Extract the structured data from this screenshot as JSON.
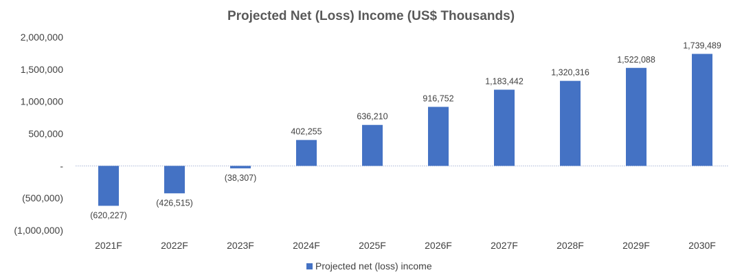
{
  "chart_data": {
    "type": "bar",
    "title": "Projected Net (Loss) Income (US$ Thousands)",
    "categories": [
      "2021F",
      "2022F",
      "2023F",
      "2024F",
      "2025F",
      "2026F",
      "2027F",
      "2028F",
      "2029F",
      "2030F"
    ],
    "series": [
      {
        "name": "Projected net (loss) income",
        "values": [
          -620227,
          -426515,
          -38307,
          402255,
          636210,
          916752,
          1183442,
          1320316,
          1522088,
          1739489
        ],
        "data_labels": [
          "(620,227)",
          "(426,515)",
          "(38,307)",
          "402,255",
          "636,210",
          "916,752",
          "1,183,442",
          "1,320,316",
          "1,522,088",
          "1,739,489"
        ]
      }
    ],
    "ylim": [
      -1000000,
      2000000
    ],
    "y_ticks": [
      2000000,
      1500000,
      1000000,
      500000,
      0,
      -500000,
      -1000000
    ],
    "y_tick_labels": [
      "2,000,000",
      "1,500,000",
      "1,000,000",
      "500,000",
      "-",
      "(500,000)",
      "(1,000,000)"
    ],
    "grid": false,
    "legend_position": "bottom",
    "colors": {
      "bar": "#4472C4",
      "zero_line": "#A6B4D4"
    }
  }
}
